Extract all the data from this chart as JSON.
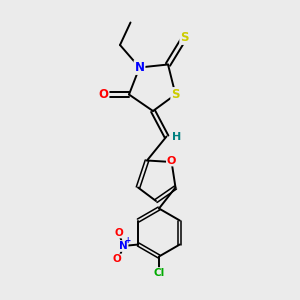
{
  "background_color": "#ebebeb",
  "bond_color": "#000000",
  "atom_colors": {
    "N": "#0000ff",
    "O": "#ff0000",
    "S": "#cccc00",
    "Cl": "#00aa00",
    "H": "#008080"
  },
  "figsize": [
    3.0,
    3.0
  ],
  "dpi": 100
}
